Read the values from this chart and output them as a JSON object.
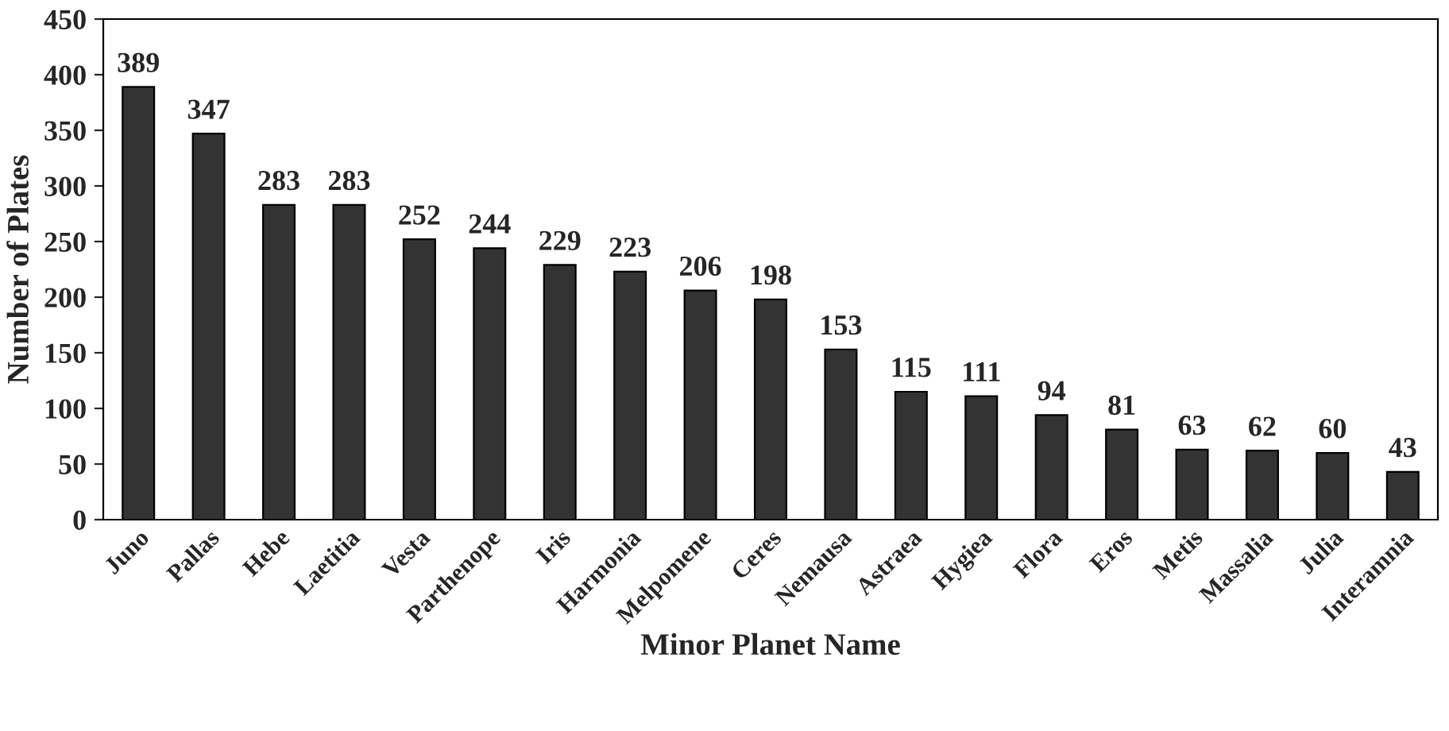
{
  "chart_data": {
    "type": "bar",
    "xlabel": "Minor Planet Name",
    "ylabel": "Number of Plates",
    "categories": [
      "Juno",
      "Pallas",
      "Hebe",
      "Laetitia",
      "Vesta",
      "Parthenope",
      "Iris",
      "Harmonia",
      "Melpomene",
      "Ceres",
      "Nemausa",
      "Astraea",
      "Hygiea",
      "Flora",
      "Eros",
      "Metis",
      "Massalia",
      "Julia",
      "Interamnia"
    ],
    "values": [
      389,
      347,
      283,
      283,
      252,
      244,
      229,
      223,
      206,
      198,
      153,
      115,
      111,
      94,
      81,
      63,
      62,
      60,
      43
    ],
    "color": "#333333",
    "ylim": [
      0,
      450
    ],
    "yticks": [
      0,
      50,
      100,
      150,
      200,
      250,
      300,
      350,
      400,
      450
    ],
    "data_labels": true,
    "grid": false,
    "legend": false
  }
}
